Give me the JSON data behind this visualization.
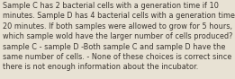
{
  "lines": [
    "Sample C has 2 bacterial cells with a generation time if 10",
    "minutes. Sample D has 4 bacterial cells with a generation time of",
    "20 minutes. If both samples were allowed to grow for 5 hours,",
    "which sample wold have the larger number of cells produced? -",
    "sample C - sample D -Both sample C and sample D have the",
    "same number of cells. - None of these choices is correct since",
    "there is not enough information about the incubator."
  ],
  "bg_color": "#e8e2d4",
  "text_color": "#3a3530",
  "font_size": 5.85,
  "fig_width": 2.61,
  "fig_height": 0.88,
  "dpi": 100
}
